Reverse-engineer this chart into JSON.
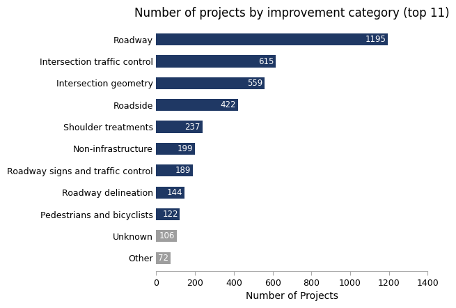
{
  "title": "Number of projects by improvement category (top 11)",
  "xlabel": "Number of Projects",
  "categories": [
    "Roadway",
    "Intersection traffic control",
    "Intersection geometry",
    "Roadside",
    "Shoulder treatments",
    "Non-infrastructure",
    "Roadway signs and traffic control",
    "Roadway delineation",
    "Pedestrians and bicyclists",
    "Unknown",
    "Other"
  ],
  "values": [
    1195,
    615,
    559,
    422,
    237,
    199,
    189,
    144,
    122,
    106,
    72
  ],
  "bar_colors": [
    "#1f3864",
    "#1f3864",
    "#1f3864",
    "#1f3864",
    "#1f3864",
    "#1f3864",
    "#1f3864",
    "#1f3864",
    "#1f3864",
    "#9e9e9e",
    "#9e9e9e"
  ],
  "xlim": [
    0,
    1400
  ],
  "xticks": [
    0,
    200,
    400,
    600,
    800,
    1000,
    1200,
    1400
  ],
  "label_color": "#ffffff",
  "label_fontsize": 8.5,
  "title_fontsize": 12,
  "xlabel_fontsize": 10,
  "ytick_fontsize": 9,
  "xtick_fontsize": 9,
  "background_color": "#ffffff",
  "bar_height": 0.55
}
